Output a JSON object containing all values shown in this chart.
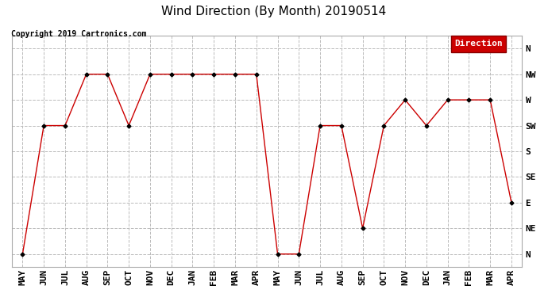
{
  "title": "Wind Direction (By Month) 20190514",
  "copyright": "Copyright 2019 Cartronics.com",
  "legend_label": "Direction",
  "legend_bg": "#cc0000",
  "legend_text_color": "#ffffff",
  "line_color": "#cc0000",
  "marker_color": "#000000",
  "background_color": "#ffffff",
  "grid_color": "#bbbbbb",
  "x_labels": [
    "MAY",
    "JUN",
    "JUL",
    "AUG",
    "SEP",
    "OCT",
    "NOV",
    "DEC",
    "JAN",
    "FEB",
    "MAR",
    "APR",
    "MAY",
    "JUN",
    "JUL",
    "AUG",
    "SEP",
    "OCT",
    "NOV",
    "DEC",
    "JAN",
    "FEB",
    "MAR",
    "APR"
  ],
  "y_labels": [
    "N",
    "NW",
    "W",
    "SW",
    "S",
    "SE",
    "E",
    "NE",
    "N"
  ],
  "y_tick_positions": [
    8,
    7,
    6,
    5,
    4,
    3,
    2,
    1,
    0
  ],
  "data_y": [
    0,
    5,
    5,
    7,
    7,
    5,
    7,
    7,
    7,
    7,
    7,
    7,
    0,
    0,
    5,
    5,
    1,
    5,
    6,
    5,
    6,
    6,
    6,
    2
  ],
  "title_fontsize": 11,
  "copyright_fontsize": 7,
  "tick_fontsize": 8,
  "legend_fontsize": 8
}
